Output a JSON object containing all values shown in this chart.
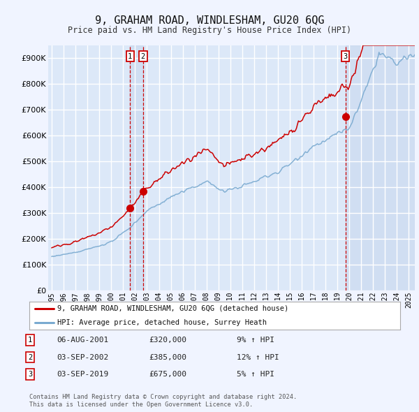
{
  "title": "9, GRAHAM ROAD, WINDLESHAM, GU20 6QG",
  "subtitle": "Price paid vs. HM Land Registry's House Price Index (HPI)",
  "ylim": [
    0,
    950000
  ],
  "yticks": [
    0,
    100000,
    200000,
    300000,
    400000,
    500000,
    600000,
    700000,
    800000,
    900000
  ],
  "ytick_labels": [
    "£0",
    "£100K",
    "£200K",
    "£300K",
    "£400K",
    "£500K",
    "£600K",
    "£700K",
    "£800K",
    "£900K"
  ],
  "background_color": "#f0f4ff",
  "plot_bg_color": "#dce8f8",
  "grid_color": "#ffffff",
  "line_color_red": "#cc0000",
  "line_color_blue": "#7aaad0",
  "shade_color": "#c8d8ee",
  "sale_marker_color": "#cc0000",
  "sale_vline_color": "#cc0000",
  "legend_label_red": "9, GRAHAM ROAD, WINDLESHAM, GU20 6QG (detached house)",
  "legend_label_blue": "HPI: Average price, detached house, Surrey Heath",
  "transactions": [
    {
      "id": 1,
      "date": "06-AUG-2001",
      "price": 320000,
      "pct": "9%",
      "x_year": 2001.58
    },
    {
      "id": 2,
      "date": "03-SEP-2002",
      "price": 385000,
      "pct": "12%",
      "x_year": 2002.67
    },
    {
      "id": 3,
      "date": "03-SEP-2019",
      "price": 675000,
      "pct": "5%",
      "x_year": 2019.67
    }
  ],
  "footer_line1": "Contains HM Land Registry data © Crown copyright and database right 2024.",
  "footer_line2": "This data is licensed under the Open Government Licence v3.0.",
  "xlim_start": 1994.7,
  "xlim_end": 2025.5
}
